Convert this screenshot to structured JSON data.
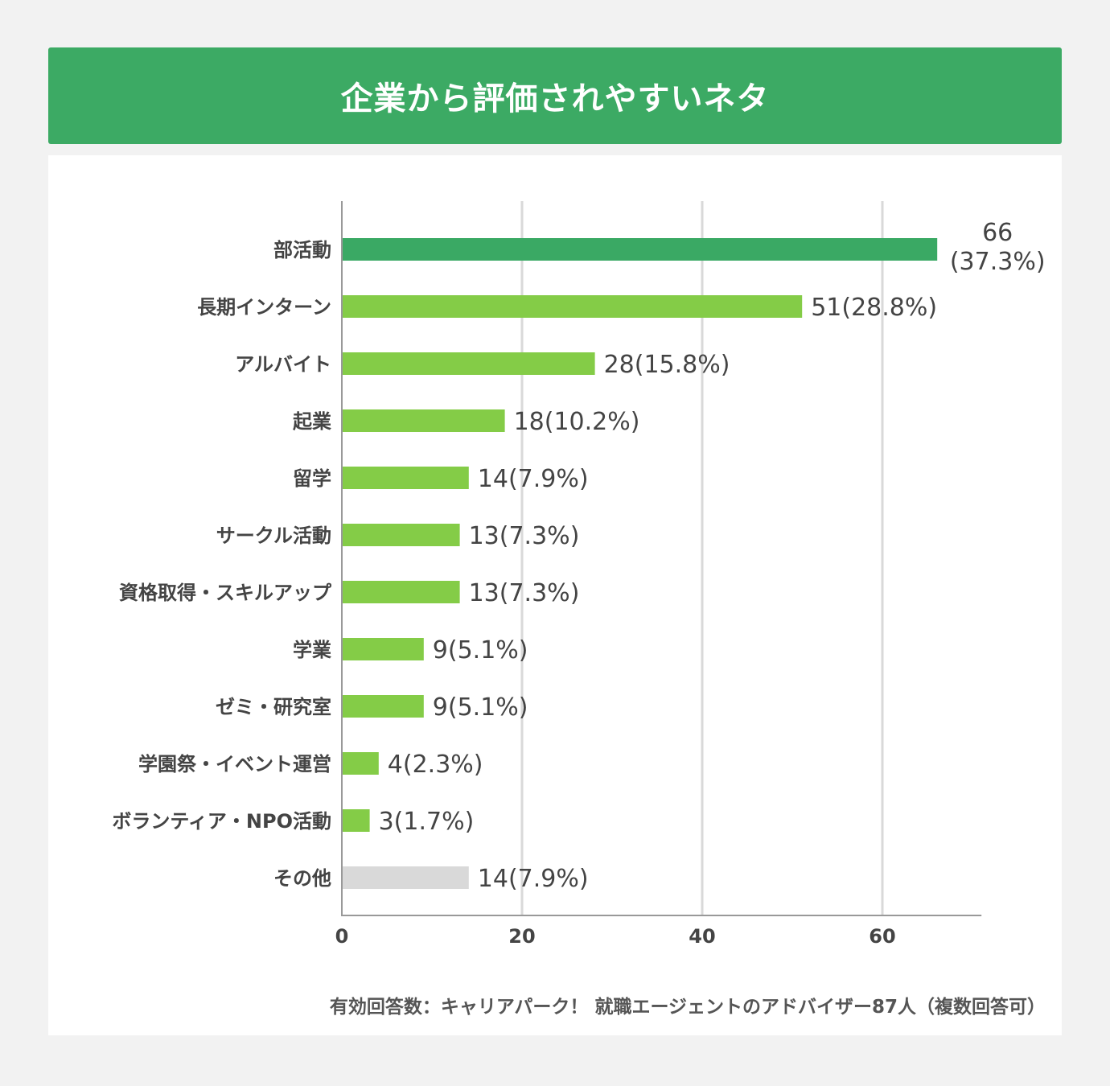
{
  "title": "企業から評価されやすいネタ",
  "colors": {
    "title_bg": "#3caa64",
    "highlight": "#3aa964",
    "bar": "#84cc47",
    "other": "#d9d9d9",
    "grid": "#d9d9d9"
  },
  "chart_data": {
    "type": "bar",
    "orientation": "horizontal",
    "categories": [
      "部活動",
      "長期インターン",
      "アルバイト",
      "起業",
      "留学",
      "サークル活動",
      "資格取得・スキルアップ",
      "学業",
      "ゼミ・研究室",
      "学園祭・イベント運営",
      "ボランティア・NPO活動",
      "その他"
    ],
    "values": [
      66,
      51,
      28,
      18,
      14,
      13,
      13,
      9,
      9,
      4,
      3,
      14
    ],
    "percent_labels": [
      "(37.3%)",
      "(28.8%)",
      "(15.8%)",
      "(10.2%)",
      "(7.9%)",
      "(7.3%)",
      "(7.3%)",
      "(5.1%)",
      "(5.1%)",
      "(2.3%)",
      "(1.7%)",
      "(7.9%)"
    ],
    "xlim": [
      0,
      71
    ],
    "xticks": [
      "0",
      "20",
      "40",
      "60"
    ],
    "grid": true,
    "note": "有効回答数：キャリアパーク！ 就職エージェントのアドバイザー87人（複数回答可）"
  }
}
